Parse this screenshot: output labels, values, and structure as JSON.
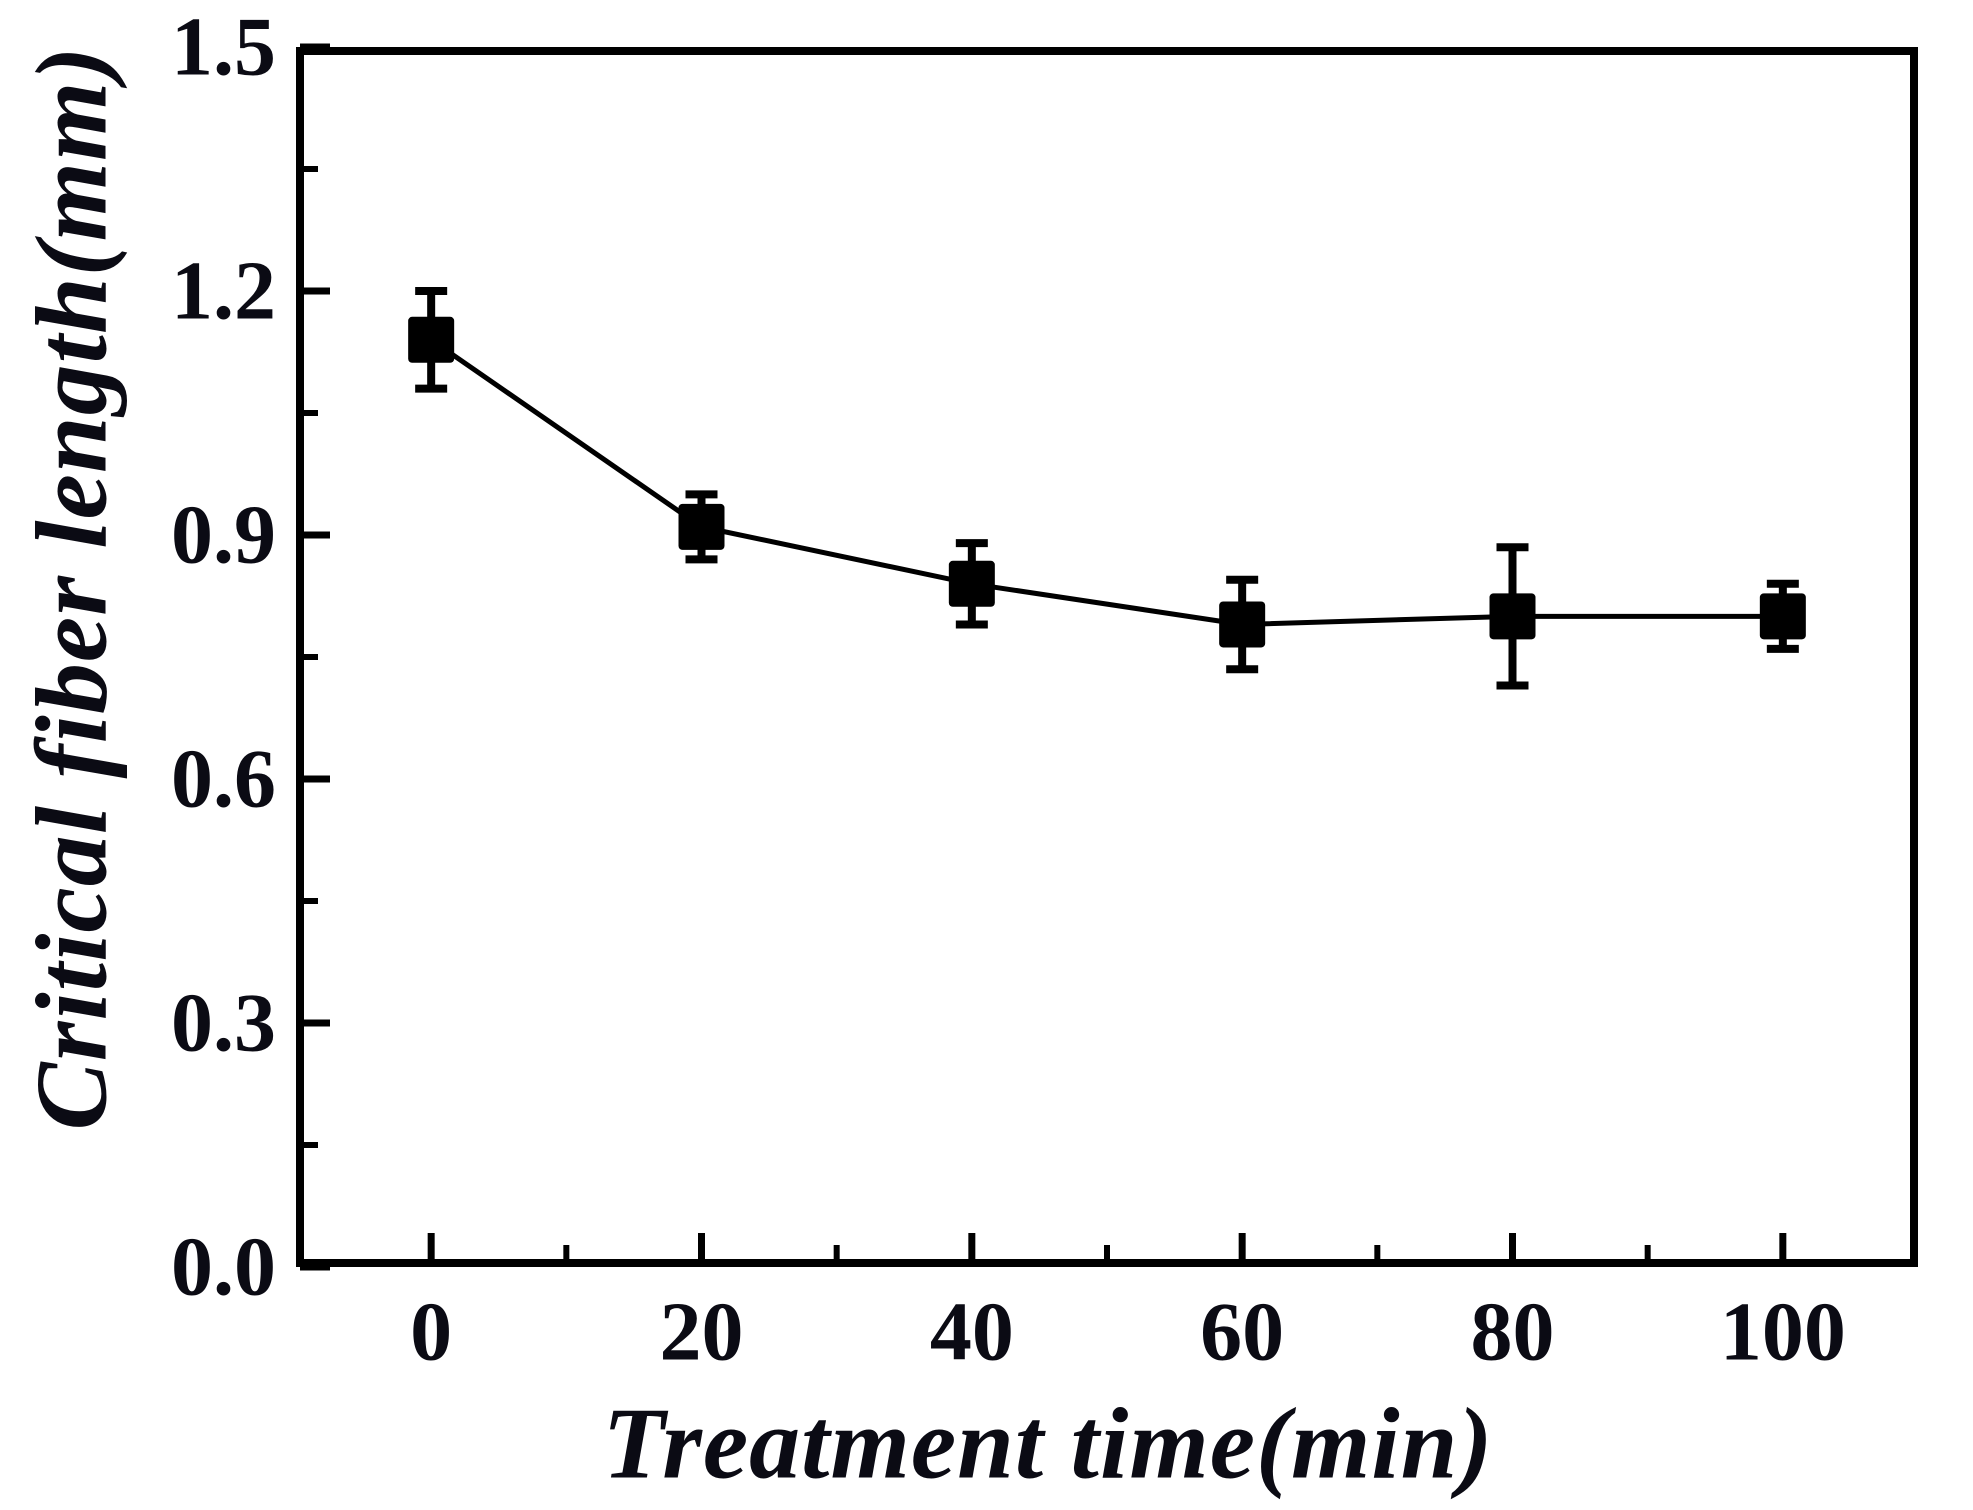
{
  "figure": {
    "background_color": "#ffffff",
    "ink_color": "#000000",
    "label_color": "#0b0b14"
  },
  "chart_data": {
    "type": "line",
    "title": "",
    "xlabel": "Treatment time(min)",
    "ylabel": "Critical fiber length(mm)",
    "x": [
      0,
      20,
      40,
      60,
      80,
      100
    ],
    "series": [
      {
        "name": "Critical fiber length",
        "values": [
          1.14,
          0.91,
          0.84,
          0.79,
          0.8,
          0.8
        ],
        "errors": [
          0.06,
          0.04,
          0.05,
          0.055,
          0.085,
          0.04
        ],
        "marker": "filled-square",
        "line_style": "solid",
        "color": "#000000"
      }
    ],
    "xlim": [
      -10,
      110
    ],
    "ylim": [
      0,
      1.5
    ],
    "x_major_ticks": [
      0,
      20,
      40,
      60,
      80,
      100
    ],
    "x_minor_ticks": [
      10,
      30,
      50,
      70,
      90
    ],
    "y_major_ticks": [
      0,
      0.3,
      0.6,
      0.9,
      1.2,
      1.5
    ],
    "y_minor_ticks": [
      0.15,
      0.45,
      0.75,
      1.05,
      1.35
    ],
    "x_tick_labels": [
      "0",
      "20",
      "40",
      "60",
      "80",
      "100"
    ],
    "y_tick_labels": [
      "0.0",
      "0.3",
      "0.6",
      "0.9",
      "1.2",
      "1.5"
    ],
    "tick_direction": "in",
    "grid": false,
    "legend": null,
    "error_bars": true
  }
}
